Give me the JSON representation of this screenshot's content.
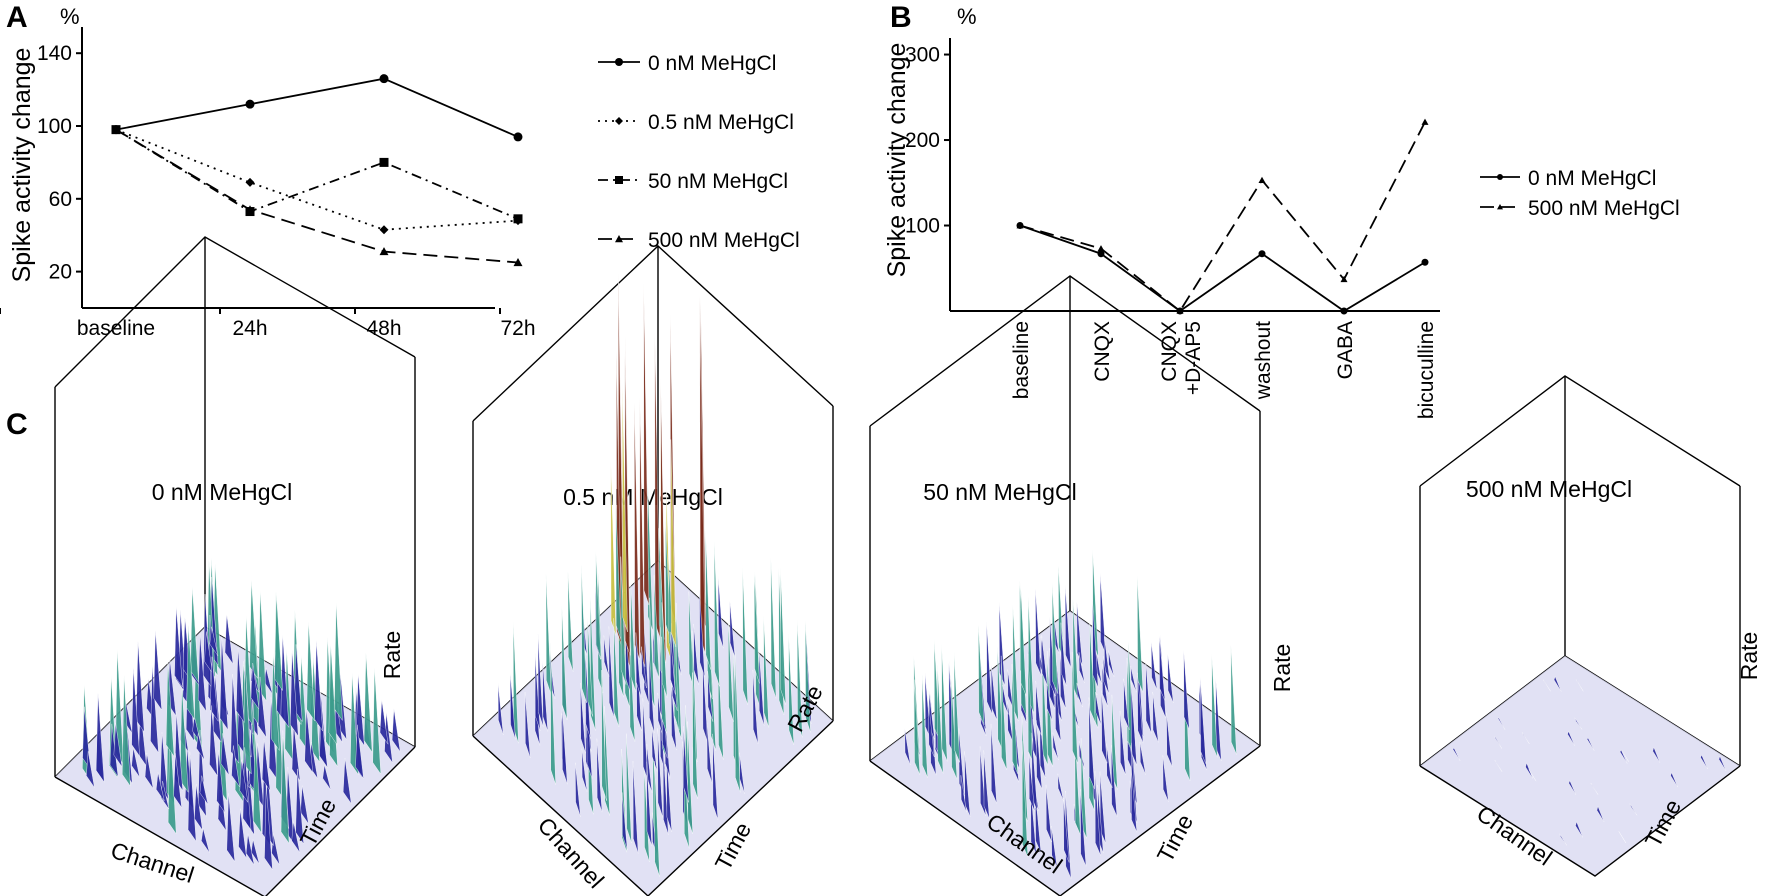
{
  "panels": {
    "a": {
      "letter": "A"
    },
    "b": {
      "letter": "B"
    },
    "c": {
      "letter": "C"
    }
  },
  "chart_data": [
    {
      "id": "panel-a",
      "type": "line",
      "unit_label": "%",
      "ylabel": "Spike activity change",
      "xlabel": "",
      "categories": [
        "baseline",
        "24h",
        "48h",
        "72h"
      ],
      "yticks": [
        20,
        60,
        100,
        140
      ],
      "ylim": [
        0,
        150
      ],
      "grid": false,
      "legend_position": "right",
      "series": [
        {
          "name": "0 nM MeHgCl",
          "marker": "circle",
          "dash": "solid",
          "values": [
            98,
            112,
            126,
            94
          ]
        },
        {
          "name": "0.5 nM MeHgCl",
          "marker": "diamond",
          "dash": "dotted",
          "values": [
            98,
            69,
            43,
            48
          ]
        },
        {
          "name": "50 nM MeHgCl",
          "marker": "square",
          "dash": "dashdot",
          "values": [
            98,
            53,
            80,
            49
          ]
        },
        {
          "name": "500 nM MeHgCl",
          "marker": "triangle",
          "dash": "dashed",
          "values": [
            98,
            54,
            31,
            25
          ]
        }
      ]
    },
    {
      "id": "panel-b",
      "type": "line",
      "unit_label": "%",
      "ylabel": "Spike activity change",
      "xlabel": "",
      "categories": [
        "baseline",
        "CNQX",
        "CNQX +D-AP5",
        "washout",
        "GABA",
        "bicuculline"
      ],
      "category_lines": [
        [
          "baseline"
        ],
        [
          "CNQX"
        ],
        [
          "CNQX",
          "+D-AP5"
        ],
        [
          "washout"
        ],
        [
          "GABA"
        ],
        [
          "bicuculline"
        ]
      ],
      "yticks": [
        100,
        200,
        300
      ],
      "ylim": [
        0,
        310
      ],
      "grid": false,
      "legend_position": "right",
      "series": [
        {
          "name": "0 nM MeHgCl",
          "marker": "circle",
          "dash": "solid",
          "values": [
            100,
            67,
            0,
            67,
            0,
            57
          ]
        },
        {
          "name": "500 nM MeHgCl",
          "marker": "triangle",
          "dash": "dashed",
          "values": [
            100,
            73,
            0,
            153,
            37,
            221
          ]
        }
      ]
    },
    {
      "id": "panel-c",
      "type": "surface3d",
      "axis_labels": {
        "x": "Channel",
        "y": "Time",
        "z": "Rate"
      },
      "surfaces": [
        {
          "title": "0 nM MeHgCl",
          "relative_peak": 0.35
        },
        {
          "title": "0.5 nM MeHgCl",
          "relative_peak": 1.0
        },
        {
          "title": "50 nM MeHgCl",
          "relative_peak": 0.35
        },
        {
          "title": "500 nM MeHgCl",
          "relative_peak": 0.05
        }
      ]
    }
  ],
  "colors": {
    "ink": "#000000",
    "surface_low": "#dcdcf2",
    "surface_mid": "#2a2a9e",
    "surface_teal": "#3c9c8c",
    "surface_high": "#7a2a1a",
    "surface_yellow": "#c8c040"
  }
}
